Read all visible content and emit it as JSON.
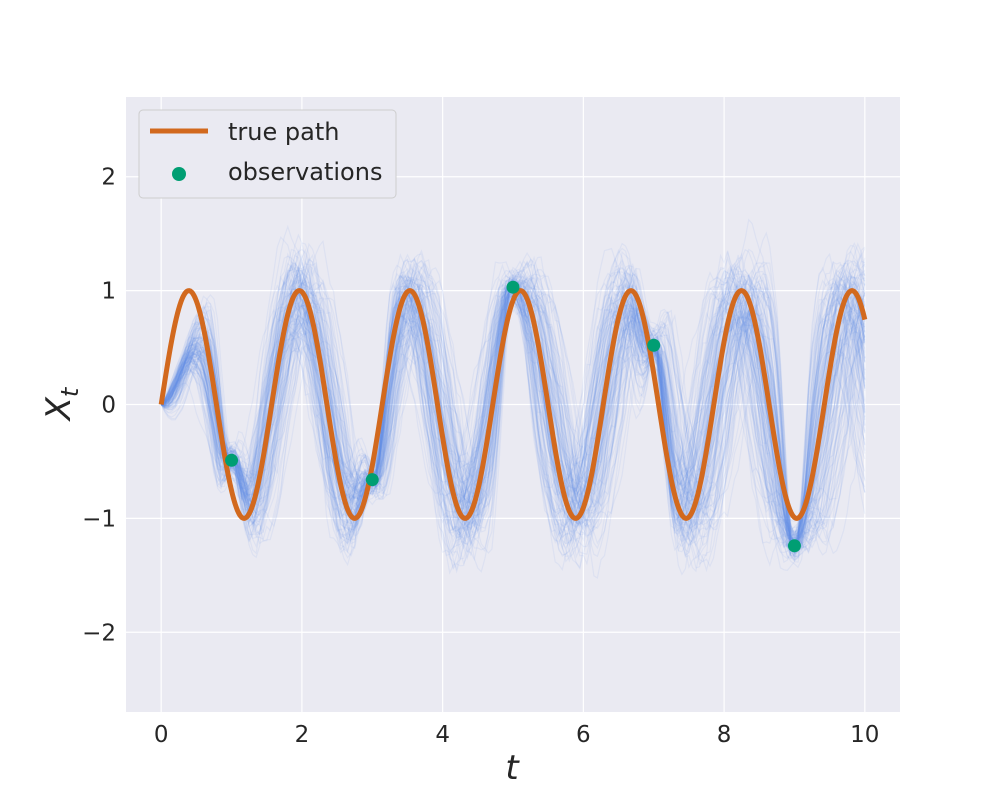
{
  "chart_data": {
    "type": "line",
    "title": "",
    "xlabel": "t",
    "ylabel": "X",
    "ylabel_subscript": "t",
    "xlim": [
      -0.5,
      10.5
    ],
    "ylim": [
      -2.7,
      2.7
    ],
    "xticks": [
      0,
      2,
      4,
      6,
      8,
      10
    ],
    "yticks": [
      -2,
      -1,
      0,
      1,
      2
    ],
    "xtick_labels": [
      "0",
      "2",
      "4",
      "6",
      "8",
      "10"
    ],
    "ytick_labels": [
      "−2",
      "−1",
      "0",
      "1",
      "2"
    ],
    "grid": true,
    "legend_position": "top-left",
    "colors": {
      "background": "#eaeaf2",
      "grid": "#ffffff",
      "true_path": "#d2691e",
      "observations": "#009e73",
      "samples": "#6495ed"
    },
    "series": [
      {
        "name": "true path",
        "kind": "line",
        "function": "sin(4t)",
        "x_range": [
          0,
          10
        ]
      },
      {
        "name": "observations",
        "kind": "scatter",
        "x": [
          1,
          3,
          5,
          7,
          9
        ],
        "y": [
          -0.49,
          -0.66,
          1.03,
          0.52,
          -1.24
        ]
      }
    ]
  }
}
